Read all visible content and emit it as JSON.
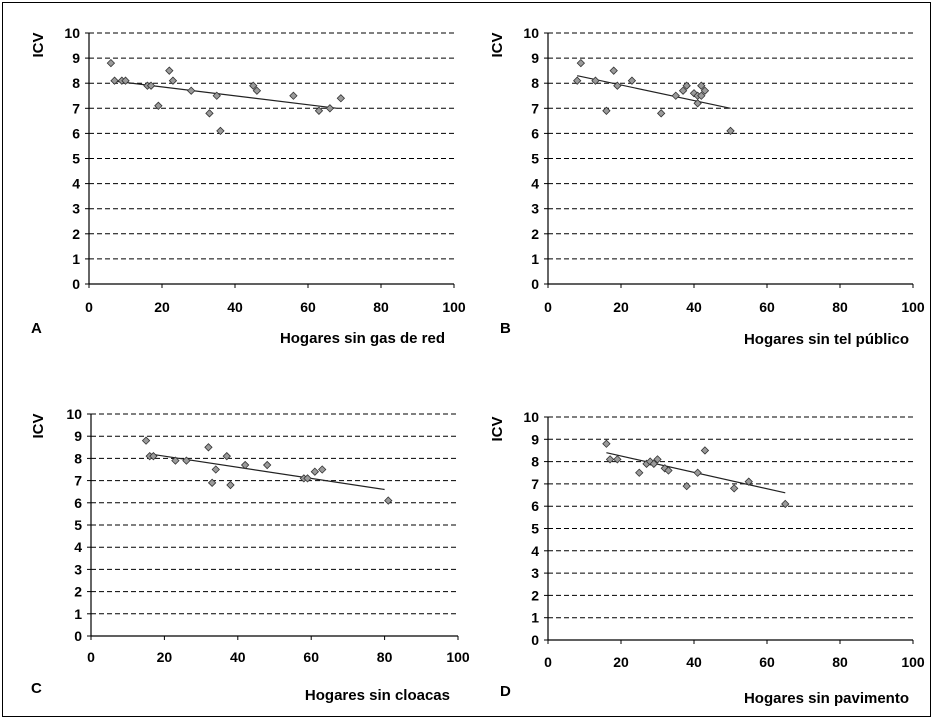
{
  "chart_data": [
    {
      "panel": "A",
      "type": "scatter",
      "xlabel": "Hogares sin gas de red",
      "ylabel": "ICV",
      "xlim": [
        0,
        100
      ],
      "ylim": [
        0,
        10
      ],
      "xticks": [
        0,
        20,
        40,
        60,
        80,
        100
      ],
      "yticks": [
        0,
        1,
        2,
        3,
        4,
        5,
        6,
        7,
        8,
        9,
        10
      ],
      "grid": "horizontal-dashed",
      "points": [
        [
          6,
          8.8
        ],
        [
          7,
          8.1
        ],
        [
          9,
          8.1
        ],
        [
          10,
          8.1
        ],
        [
          16,
          7.9
        ],
        [
          17,
          7.9
        ],
        [
          19,
          7.1
        ],
        [
          22,
          8.5
        ],
        [
          23,
          8.1
        ],
        [
          28,
          7.7
        ],
        [
          33,
          6.8
        ],
        [
          35,
          7.5
        ],
        [
          36,
          6.1
        ],
        [
          45,
          7.9
        ],
        [
          46,
          7.7
        ],
        [
          56,
          7.5
        ],
        [
          63,
          6.9
        ],
        [
          66,
          7.0
        ],
        [
          69,
          7.4
        ]
      ],
      "trendline": [
        [
          6,
          8.1
        ],
        [
          68,
          7.0
        ]
      ]
    },
    {
      "panel": "B",
      "type": "scatter",
      "xlabel": "Hogares sin tel público",
      "ylabel": "ICV",
      "xlim": [
        0,
        100
      ],
      "ylim": [
        0,
        10
      ],
      "xticks": [
        0,
        20,
        40,
        60,
        80,
        100
      ],
      "yticks": [
        0,
        1,
        2,
        3,
        4,
        5,
        6,
        7,
        8,
        9,
        10
      ],
      "grid": "horizontal-dashed",
      "points": [
        [
          8,
          8.1
        ],
        [
          9,
          8.8
        ],
        [
          13,
          8.1
        ],
        [
          16,
          6.9
        ],
        [
          18,
          8.5
        ],
        [
          19,
          7.9
        ],
        [
          23,
          8.1
        ],
        [
          31,
          6.8
        ],
        [
          35,
          7.5
        ],
        [
          37,
          7.7
        ],
        [
          38,
          7.9
        ],
        [
          40,
          7.6
        ],
        [
          41,
          7.2
        ],
        [
          41,
          7.5
        ],
        [
          42,
          7.9
        ],
        [
          42,
          7.5
        ],
        [
          43,
          7.7
        ],
        [
          50,
          6.1
        ]
      ],
      "trendline": [
        [
          8,
          8.3
        ],
        [
          50,
          7.0
        ]
      ]
    },
    {
      "panel": "C",
      "type": "scatter",
      "xlabel": "Hogares sin cloacas",
      "ylabel": "ICV",
      "xlim": [
        0,
        100
      ],
      "ylim": [
        0,
        10
      ],
      "xticks": [
        0,
        20,
        40,
        60,
        80,
        100
      ],
      "yticks": [
        0,
        1,
        2,
        3,
        4,
        5,
        6,
        7,
        8,
        9,
        10
      ],
      "grid": "horizontal-dashed",
      "points": [
        [
          15,
          8.8
        ],
        [
          16,
          8.1
        ],
        [
          17,
          8.1
        ],
        [
          23,
          7.9
        ],
        [
          26,
          7.9
        ],
        [
          32,
          8.5
        ],
        [
          33,
          6.9
        ],
        [
          34,
          7.5
        ],
        [
          37,
          8.1
        ],
        [
          38,
          6.8
        ],
        [
          42,
          7.7
        ],
        [
          48,
          7.7
        ],
        [
          58,
          7.1
        ],
        [
          59,
          7.1
        ],
        [
          61,
          7.4
        ],
        [
          63,
          7.5
        ],
        [
          81,
          6.1
        ]
      ],
      "trendline": [
        [
          16,
          8.2
        ],
        [
          80,
          6.6
        ]
      ]
    },
    {
      "panel": "D",
      "type": "scatter",
      "xlabel": "Hogares sin pavimento",
      "ylabel": "ICV",
      "xlim": [
        0,
        100
      ],
      "ylim": [
        0,
        10
      ],
      "xticks": [
        0,
        20,
        40,
        60,
        80,
        100
      ],
      "yticks": [
        0,
        1,
        2,
        3,
        4,
        5,
        6,
        7,
        8,
        9,
        10
      ],
      "grid": "horizontal-dashed",
      "points": [
        [
          16,
          8.8
        ],
        [
          17,
          8.1
        ],
        [
          19,
          8.1
        ],
        [
          25,
          7.5
        ],
        [
          27,
          7.9
        ],
        [
          28,
          8.0
        ],
        [
          29,
          7.9
        ],
        [
          30,
          8.1
        ],
        [
          32,
          7.7
        ],
        [
          33,
          7.6
        ],
        [
          38,
          6.9
        ],
        [
          41,
          7.5
        ],
        [
          43,
          8.5
        ],
        [
          51,
          6.8
        ],
        [
          55,
          7.1
        ],
        [
          65,
          6.1
        ]
      ],
      "trendline": [
        [
          16,
          8.4
        ],
        [
          65,
          6.6
        ]
      ]
    }
  ]
}
